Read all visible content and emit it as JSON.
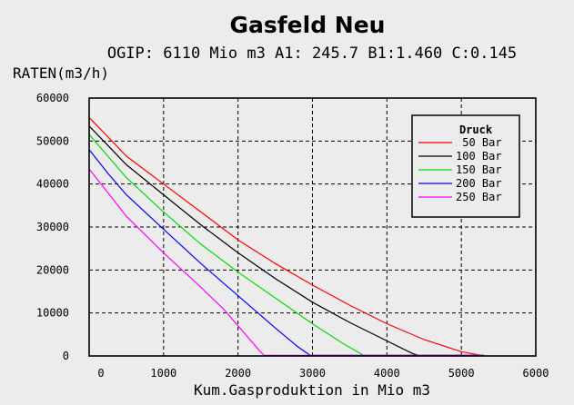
{
  "chart_data": {
    "type": "line",
    "title": "Gasfeld Neu",
    "subtitle": "OGIP: 6110 Mio m3 A1: 245.7 B1:1.460 C:0.145",
    "ylabel": "RATEN(m3/h)",
    "xlabel": "Kum.Gasproduktion in Mio m3",
    "xlim": [
      0,
      6000
    ],
    "ylim": [
      0,
      60000
    ],
    "xticks": [
      0,
      1000,
      2000,
      3000,
      4000,
      5000,
      6000
    ],
    "xtick_labels": [
      "0",
      "1000",
      "2000",
      "3000",
      "4000",
      "5000",
      "6000"
    ],
    "yticks": [
      0,
      10000,
      20000,
      30000,
      40000,
      50000,
      60000
    ],
    "ytick_labels": [
      "0",
      "10000",
      "20000",
      "30000",
      "40000",
      "50000",
      "60000"
    ],
    "grid": true,
    "legend": {
      "title": "Druck",
      "position": "top-right"
    },
    "series": [
      {
        "name": " 50 Bar",
        "color": "#ff0000",
        "x": [
          0,
          250,
          500,
          1000,
          1500,
          2000,
          2500,
          3000,
          3500,
          4000,
          4500,
          5000,
          5250,
          5300
        ],
        "y": [
          55500,
          51000,
          46500,
          40000,
          33500,
          27000,
          21500,
          16500,
          11800,
          7500,
          3800,
          1000,
          200,
          0
        ]
      },
      {
        "name": "100 Bar",
        "color": "#000000",
        "x": [
          0,
          250,
          500,
          1000,
          1500,
          2000,
          2500,
          3000,
          3500,
          4000,
          4350,
          4450
        ],
        "y": [
          53500,
          49000,
          44500,
          37500,
          30500,
          24000,
          18000,
          12500,
          7800,
          3500,
          500,
          0
        ]
      },
      {
        "name": "150 Bar",
        "color": "#00dd00",
        "x": [
          0,
          250,
          500,
          1000,
          1500,
          2000,
          2500,
          3000,
          3400,
          3700
        ],
        "y": [
          51500,
          46500,
          41500,
          33500,
          26000,
          19500,
          13500,
          7500,
          3000,
          0
        ]
      },
      {
        "name": "200 Bar",
        "color": "#0000ff",
        "x": [
          0,
          250,
          500,
          1000,
          1500,
          2000,
          2500,
          2800,
          2980
        ],
        "y": [
          48000,
          42500,
          37500,
          29500,
          21500,
          14000,
          6500,
          2200,
          0
        ]
      },
      {
        "name": "250 Bar",
        "color": "#ff00ff",
        "x": [
          0,
          250,
          500,
          1000,
          1500,
          1800,
          2100,
          2300,
          2360
        ],
        "y": [
          43500,
          38000,
          32500,
          24000,
          16000,
          11000,
          5000,
          1000,
          0
        ]
      }
    ]
  }
}
